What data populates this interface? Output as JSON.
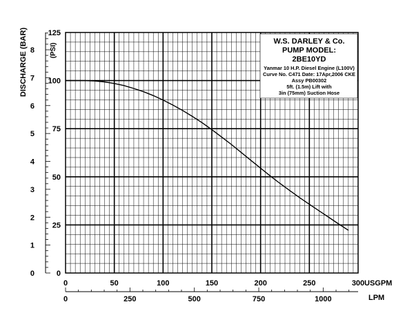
{
  "chart_data": {
    "type": "line",
    "title_lines": [
      "W.S. DARLEY & Co.",
      "PUMP MODEL:",
      "2BE10YD"
    ],
    "info_lines": [
      "Yanmar  10 H.P. Diesel Engine (L100V)",
      "Curve No. C471 Date: 17Apr,2006 CKE",
      "Assy PB00302",
      "5ft. (1.5m) Lift with",
      "3in (75mm) Suction Hose"
    ],
    "axes": {
      "y_left_label": "DISCHARGE (BAR)",
      "y_psi_unit": "(PSI)",
      "x_usgpm_unit": "USGPM",
      "x_lpm_unit": "LPM",
      "usgpm_range": [
        0,
        300
      ],
      "psi_range": [
        0,
        125
      ],
      "bar_range": [
        0,
        8.62
      ],
      "usgpm_ticks": [
        "0",
        "50",
        "100",
        "150",
        "200",
        "250",
        "300"
      ],
      "lpm_ticks": [
        "0",
        "250",
        "500",
        "750",
        "1000"
      ],
      "psi_ticks": [
        "0",
        "25",
        "50",
        "75",
        "100",
        "125"
      ],
      "bar_ticks": [
        "0",
        "1",
        "2",
        "3",
        "4",
        "5",
        "6",
        "7",
        "8"
      ],
      "grid": true
    },
    "series": [
      {
        "x_unit": "USGPM",
        "y_unit": "PSI",
        "x": [
          0,
          10,
          20,
          30,
          40,
          50,
          60,
          70,
          80,
          90,
          100,
          110,
          120,
          130,
          140,
          150,
          160,
          170,
          180,
          190,
          200,
          210,
          220,
          230,
          240,
          250,
          260,
          270,
          280,
          290
        ],
        "y": [
          100,
          100,
          100,
          99.8,
          99.3,
          98.5,
          97.4,
          95.9,
          94.2,
          92.2,
          89.9,
          87.3,
          84.5,
          81.4,
          78.1,
          74.5,
          70.7,
          66.8,
          62.7,
          58.6,
          54.5,
          50.4,
          46.5,
          42.8,
          39.2,
          35.7,
          32.3,
          28.9,
          25.5,
          22.2
        ]
      }
    ]
  }
}
